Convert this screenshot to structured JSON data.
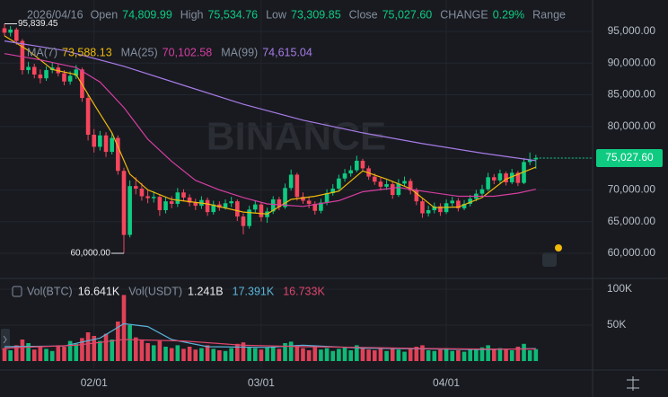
{
  "chart_data": {
    "type": "candlestick",
    "date": "2026/04/16",
    "header": [
      {
        "label": "Open",
        "value": "74,809.99"
      },
      {
        "label": "High",
        "value": "75,534.76"
      },
      {
        "label": "Low",
        "value": "73,309.85"
      },
      {
        "label": "Close",
        "value": "75,027.60"
      },
      {
        "label": "CHANGE",
        "value": "0.29%"
      }
    ],
    "header_tail": "Range",
    "watermark": "BINANCE",
    "up_color": "#0ecb81",
    "down_color": "#f6465d",
    "open": [
      95500,
      94800,
      95300,
      93500,
      88900,
      89400,
      88200,
      87600,
      88900,
      89300,
      88400,
      87100,
      88000,
      89000,
      84500,
      78700,
      76800,
      78600,
      76000,
      78200,
      73000,
      62900,
      70600,
      70200,
      69000,
      68700,
      68900,
      66800,
      68200,
      67800,
      69600,
      68800,
      68000,
      67500,
      68400,
      66500,
      67700,
      67200,
      67900,
      68200,
      65800,
      64300,
      66900,
      67700,
      65700,
      66600,
      68500,
      67300,
      70300,
      72400,
      68900,
      68300,
      67800,
      66700,
      68000,
      69500,
      70200,
      71800,
      72600,
      73100,
      74600,
      73400,
      72100,
      71300,
      70500,
      70900,
      69200,
      71000,
      71400,
      69900,
      68200,
      66300,
      66800,
      67400,
      66500,
      67900,
      68300,
      67100,
      67800,
      68600,
      69400,
      70100,
      72000,
      71500,
      72600,
      71200,
      72700,
      71100,
      74400,
      74809.99
    ],
    "high": [
      96200,
      95839.45,
      95600,
      93800,
      90200,
      89900,
      89000,
      89500,
      90100,
      89800,
      88900,
      88700,
      89700,
      89300,
      85000,
      79600,
      79300,
      79100,
      79000,
      78600,
      73500,
      71500,
      72000,
      71100,
      70100,
      69800,
      69300,
      68900,
      69000,
      70300,
      70100,
      69300,
      68600,
      69000,
      68800,
      68300,
      68200,
      68500,
      68900,
      68500,
      66300,
      67500,
      68300,
      68100,
      67200,
      69000,
      68900,
      71000,
      73200,
      72700,
      69600,
      68900,
      68200,
      68600,
      70100,
      70900,
      72400,
      73300,
      73800,
      75400,
      74900,
      73800,
      72600,
      71900,
      71600,
      71300,
      71700,
      72100,
      71800,
      70300,
      68600,
      67500,
      68000,
      67900,
      68500,
      68900,
      68700,
      68400,
      69200,
      70000,
      70800,
      72700,
      72500,
      73200,
      72900,
      73300,
      73000,
      75000,
      75900,
      75534.76
    ],
    "low": [
      94300,
      94200,
      92900,
      88200,
      88300,
      87600,
      86800,
      87200,
      88400,
      87900,
      86500,
      86600,
      87500,
      83900,
      77800,
      75900,
      76200,
      75200,
      75600,
      72400,
      60000,
      62500,
      69300,
      68300,
      67900,
      68000,
      65900,
      66300,
      67100,
      67300,
      68200,
      67400,
      66800,
      67000,
      65900,
      66100,
      66700,
      66900,
      67300,
      65100,
      63000,
      63900,
      66400,
      65000,
      64800,
      66200,
      66800,
      67000,
      69900,
      68300,
      67800,
      67100,
      66100,
      66300,
      67600,
      69100,
      69900,
      71300,
      72100,
      72800,
      72900,
      71600,
      70800,
      69900,
      70000,
      68600,
      68900,
      70600,
      69300,
      67600,
      65600,
      65800,
      66300,
      65900,
      66200,
      67400,
      66600,
      66800,
      67400,
      68200,
      69000,
      69800,
      70900,
      71100,
      70700,
      70900,
      70600,
      70900,
      73900,
      73309.85
    ],
    "close": [
      94800,
      95300,
      93500,
      88900,
      89400,
      88200,
      87600,
      88900,
      89300,
      88400,
      87100,
      88000,
      89000,
      84500,
      78700,
      76800,
      78600,
      76000,
      78200,
      73000,
      62900,
      70600,
      70200,
      69000,
      68700,
      68900,
      66800,
      68200,
      67800,
      69600,
      68800,
      68000,
      67500,
      68400,
      66500,
      67700,
      67200,
      67900,
      68200,
      65800,
      64300,
      66900,
      67700,
      65700,
      66600,
      68500,
      67300,
      70300,
      72400,
      68900,
      68300,
      67800,
      66700,
      68000,
      69500,
      70200,
      71800,
      72600,
      73100,
      74600,
      73400,
      72100,
      71300,
      70500,
      70900,
      69200,
      71000,
      71400,
      69900,
      68200,
      66300,
      66800,
      67400,
      66500,
      67900,
      68300,
      67100,
      67800,
      68600,
      69400,
      70100,
      72000,
      71500,
      72600,
      71200,
      72700,
      71100,
      74400,
      74810,
      75027.6
    ],
    "volume": [
      18000,
      15000,
      22000,
      30000,
      25000,
      16000,
      20000,
      17000,
      14000,
      22000,
      20000,
      28000,
      24000,
      32000,
      40000,
      35000,
      28000,
      38000,
      30000,
      55000,
      92000,
      50000,
      33000,
      30000,
      25000,
      22000,
      28000,
      20000,
      18000,
      22000,
      17000,
      20000,
      16000,
      18000,
      22000,
      17000,
      15000,
      14000,
      18000,
      24000,
      26000,
      20000,
      18000,
      16000,
      19000,
      20000,
      17000,
      25000,
      27000,
      22000,
      18000,
      15000,
      20000,
      16000,
      18000,
      14000,
      17000,
      19000,
      15000,
      22000,
      18000,
      16000,
      15000,
      19000,
      14000,
      18000,
      16000,
      13000,
      17000,
      20000,
      22000,
      15000,
      14000,
      16000,
      18000,
      14000,
      15000,
      13000,
      16000,
      17000,
      19000,
      22000,
      16000,
      18000,
      17000,
      15000,
      20000,
      24000,
      15000,
      16641
    ],
    "max_label": "95,839.45",
    "min_label": "60,000.00",
    "last_price_label": "75,027.60",
    "xlim": [
      -0.75,
      98.5
    ],
    "xticks": [
      {
        "value": 15,
        "label": "02/01"
      },
      {
        "value": 43,
        "label": "03/01"
      },
      {
        "value": 74,
        "label": "04/01"
      }
    ],
    "ylim": [
      57450,
      98540
    ],
    "yticks": [
      {
        "value": 95000,
        "label": "95,000.00"
      },
      {
        "value": 90000,
        "label": "90,000.00"
      },
      {
        "value": 85000,
        "label": "85,000.00"
      },
      {
        "value": 80000,
        "label": "80,000.00"
      },
      {
        "value": 75000,
        "label": "75,000.00"
      },
      {
        "value": 70000,
        "label": "70,000.00"
      },
      {
        "value": 65000,
        "label": "65,000.00"
      },
      {
        "value": 60000,
        "label": "60,000.00"
      }
    ],
    "vol_ylim": [
      0,
      112500
    ],
    "vol_yticks": [
      {
        "value": 100000,
        "label": "100K"
      },
      {
        "value": 50000,
        "label": "50K"
      }
    ],
    "ma_series": [
      {
        "name": "MA(7)",
        "color": "#f0b90b",
        "legend_value": "73,588.13",
        "x": [
          0,
          4,
          8,
          12,
          15,
          18,
          21,
          24,
          28,
          34,
          40,
          44,
          48,
          52,
          56,
          60,
          64,
          68,
          72,
          76,
          80,
          84,
          89
        ],
        "values": [
          94300,
          92000,
          89000,
          88200,
          83500,
          79000,
          72500,
          70000,
          68500,
          67800,
          66500,
          66200,
          68500,
          69000,
          69800,
          73000,
          71700,
          70200,
          67200,
          67300,
          68800,
          71700,
          73588.13
        ]
      },
      {
        "name": "MA(25)",
        "color": "#d63ea0",
        "legend_value": "70,102.58",
        "x": [
          0,
          6,
          12,
          16,
          20,
          24,
          28,
          32,
          36,
          40,
          44,
          50,
          56,
          60,
          66,
          70,
          76,
          82,
          86,
          89
        ],
        "values": [
          91500,
          90500,
          89300,
          87000,
          83000,
          78000,
          74500,
          71500,
          70000,
          68800,
          67800,
          67400,
          68300,
          69700,
          70400,
          69800,
          69000,
          69000,
          69500,
          70102.58
        ]
      },
      {
        "name": "MA(99)",
        "color": "#a77be6",
        "legend_value": "74,615.04",
        "x": [
          0,
          10,
          20,
          30,
          40,
          50,
          60,
          70,
          80,
          89
        ],
        "values": [
          93500,
          92000,
          89500,
          86500,
          83500,
          81000,
          79000,
          77300,
          75800,
          74615.04
        ]
      }
    ],
    "vol_legend": [
      {
        "label": "Vol(BTC)",
        "value": "16.641K"
      },
      {
        "label": "Vol(USDT)",
        "value": "1.241B"
      }
    ],
    "vol_ma_series": [
      {
        "color": "#5ab4d9",
        "legend_value": "17.391K",
        "x": [
          0,
          10,
          16,
          20,
          24,
          28,
          34,
          44,
          50,
          60,
          70,
          80,
          89
        ],
        "values": [
          20000,
          21000,
          32000,
          52000,
          48000,
          30000,
          20000,
          19000,
          22000,
          18000,
          17000,
          16000,
          17391
        ]
      },
      {
        "color": "#e0456b",
        "legend_value": "16.733K",
        "x": [
          0,
          12,
          20,
          30,
          40,
          50,
          60,
          70,
          80,
          89
        ],
        "values": [
          18000,
          22000,
          30000,
          28000,
          22000,
          20000,
          19000,
          17500,
          16800,
          16733
        ]
      }
    ]
  }
}
